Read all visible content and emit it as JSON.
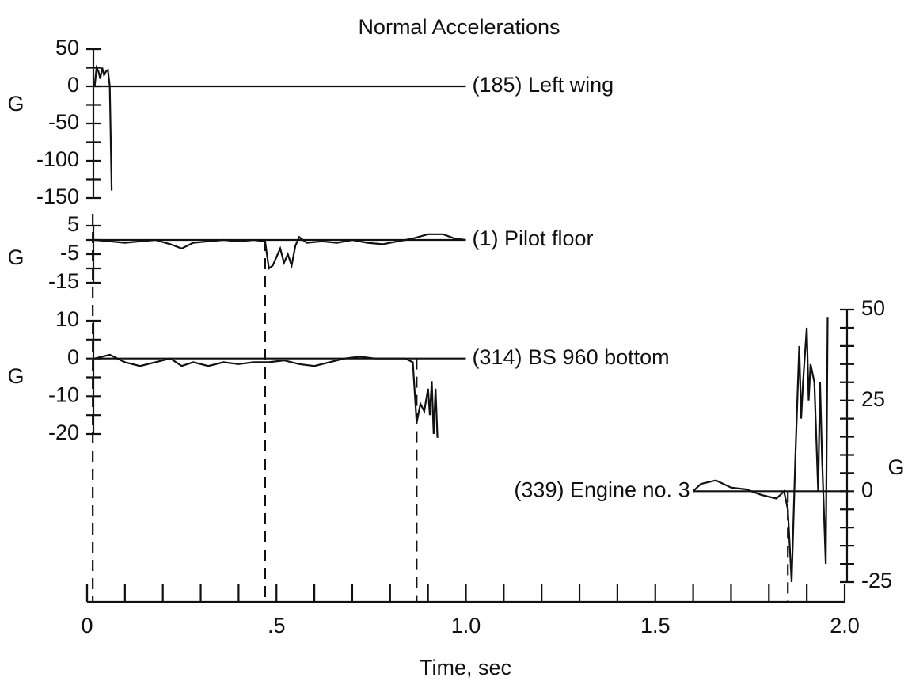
{
  "chart_data": {
    "type": "line",
    "title": "Normal Accelerations",
    "xlabel": "Time, sec",
    "xlim": [
      0,
      2.0
    ],
    "xticks": [
      0,
      {
        "value": 0.5,
        "label": ".5"
      },
      {
        "value": 1.0,
        "label": "1.0"
      },
      1.5,
      {
        "value": 2.0,
        "label": "2.0"
      }
    ],
    "xminor": [
      0.1,
      0.2,
      0.3,
      0.4,
      0.6,
      0.7,
      0.8,
      0.9,
      1.1,
      1.2,
      1.3,
      1.4,
      1.6,
      1.7,
      1.8,
      1.9
    ],
    "series": [
      {
        "name": "(185) Left wing",
        "color": "#111111",
        "axis": "left",
        "ylabel": "G",
        "ylim": [
          -150,
          50
        ],
        "yticks": [
          50,
          0,
          -50,
          -100,
          -150
        ],
        "yminor": [
          25,
          -25,
          -75,
          -125
        ],
        "marker_x": 0.015,
        "x": [
          0.02,
          0.025,
          0.03,
          0.035,
          0.04,
          0.045,
          0.05,
          0.055,
          0.06,
          0.065
        ],
        "values": [
          0,
          25,
          20,
          10,
          25,
          15,
          20,
          22,
          0,
          -140
        ]
      },
      {
        "name": "(1) Pilot floor",
        "color": "#111111",
        "axis": "left",
        "ylabel": "G",
        "ylim": [
          -15,
          5
        ],
        "yticks": [
          5,
          -5,
          -15
        ],
        "yminor": [
          0,
          -10
        ],
        "marker_x": 0.47,
        "x": [
          0.02,
          0.06,
          0.1,
          0.14,
          0.18,
          0.22,
          0.25,
          0.28,
          0.32,
          0.36,
          0.4,
          0.44,
          0.47,
          0.48,
          0.49,
          0.5,
          0.51,
          0.52,
          0.53,
          0.54,
          0.55,
          0.56,
          0.58,
          0.62,
          0.66,
          0.7,
          0.74,
          0.78,
          0.82,
          0.86,
          0.9,
          0.94,
          0.97,
          1.0
        ],
        "values": [
          0,
          -0.5,
          -1,
          -0.5,
          0,
          -1.5,
          -3,
          -1,
          -0.5,
          0,
          -0.5,
          0,
          -0.5,
          -10,
          -9,
          -6,
          -3,
          -8,
          -5,
          -9,
          -2,
          1,
          -1,
          -0.5,
          -1,
          0,
          -1,
          -1.5,
          -0.5,
          0.5,
          2,
          2,
          0.5,
          0
        ]
      },
      {
        "name": "(314) BS 960 bottom",
        "color": "#111111",
        "axis": "left",
        "ylabel": "G",
        "ylim": [
          -20,
          10
        ],
        "yticks": [
          10,
          0,
          -10,
          -20
        ],
        "yminor": [
          5,
          -5,
          -15
        ],
        "marker_x": 0.87,
        "x": [
          0.02,
          0.06,
          0.1,
          0.14,
          0.18,
          0.22,
          0.25,
          0.28,
          0.32,
          0.36,
          0.4,
          0.44,
          0.48,
          0.52,
          0.56,
          0.6,
          0.64,
          0.68,
          0.72,
          0.76,
          0.8,
          0.84,
          0.86,
          0.87,
          0.88,
          0.89,
          0.9,
          0.905,
          0.91,
          0.915,
          0.92,
          0.925
        ],
        "values": [
          0,
          1,
          -1,
          -2,
          -1,
          0,
          -2,
          -1,
          -2,
          -1,
          -1.5,
          -1,
          -1,
          -0.5,
          -1.5,
          -2,
          -1,
          0,
          0.5,
          0,
          0,
          0,
          -1,
          -17,
          -12,
          -14,
          -8,
          -15,
          -6,
          -20,
          -8,
          -21
        ]
      },
      {
        "name": "(339) Engine no. 3",
        "color": "#111111",
        "axis": "right",
        "ylabel": "G",
        "ylim": [
          -25,
          50
        ],
        "yticks": [
          50,
          25,
          0,
          -25
        ],
        "yminor": [
          45,
          40,
          35,
          30,
          20,
          15,
          10,
          5,
          -5,
          -10,
          -15,
          -20
        ],
        "marker_x": 1.85,
        "x": [
          1.6,
          1.62,
          1.66,
          1.7,
          1.74,
          1.78,
          1.82,
          1.84,
          1.85,
          1.86,
          1.87,
          1.88,
          1.885,
          1.89,
          1.9,
          1.905,
          1.91,
          1.92,
          1.93,
          1.935,
          1.94,
          1.95,
          1.955
        ],
        "values": [
          0,
          2,
          3,
          1,
          0.5,
          -1,
          -2,
          0,
          -5,
          -25,
          10,
          40,
          20,
          30,
          45,
          25,
          35,
          30,
          0,
          30,
          10,
          -20,
          48
        ]
      }
    ]
  }
}
